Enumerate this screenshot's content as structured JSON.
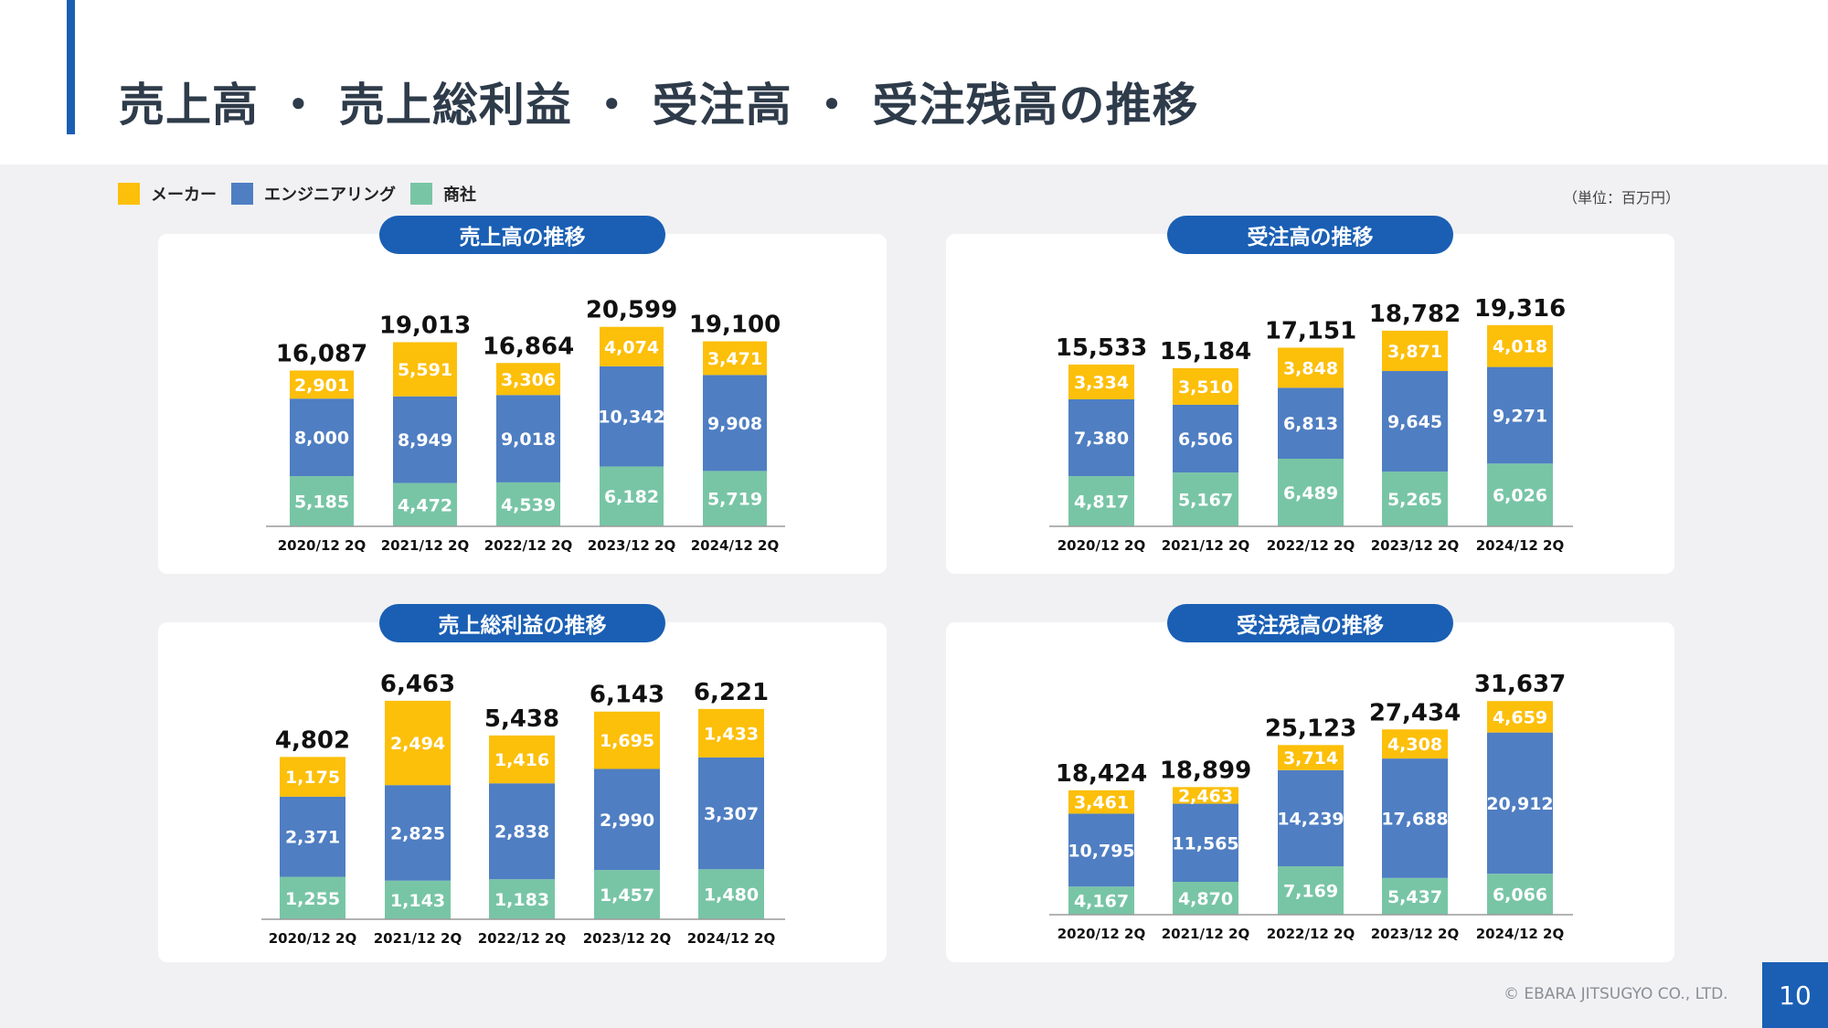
{
  "page": {
    "title": "売上高 ・ 売上総利益 ・ 受注高 ・ 受注残高の推移",
    "unit": "（単位：百万円）",
    "copyright": "© EBARA JITSUGYO CO., LTD.",
    "page_number": "10"
  },
  "colors": {
    "maker": "#fcbf0a",
    "engineering": "#4f7ec2",
    "trading": "#78c5a6",
    "accent": "#1a5fb4"
  },
  "legend": [
    {
      "label": "メーカー",
      "color": "#fcbf0a"
    },
    {
      "label": "エンジニアリング",
      "color": "#4f7ec2"
    },
    {
      "label": "商社",
      "color": "#78c5a6"
    }
  ],
  "chart_data": [
    {
      "type": "bar",
      "stacked": true,
      "title": "売上高の推移",
      "categories": [
        "2020/12 2Q",
        "2021/12 2Q",
        "2022/12 2Q",
        "2023/12 2Q",
        "2024/12 2Q"
      ],
      "totals": [
        16087,
        19013,
        16864,
        20599,
        19100
      ],
      "totals_text": [
        "16,087",
        "19,013",
        "16,864",
        "20,599",
        "19,100"
      ],
      "series": [
        {
          "name": "商社",
          "values": [
            5185,
            4472,
            4539,
            6182,
            5719
          ],
          "text": [
            "5,185",
            "4,472",
            "4,539",
            "6,182",
            "5,719"
          ]
        },
        {
          "name": "エンジニアリング",
          "values": [
            8000,
            8949,
            9018,
            10342,
            9908
          ],
          "text": [
            "8,000",
            "8,949",
            "9,018",
            "10,342",
            "9,908"
          ]
        },
        {
          "name": "メーカー",
          "values": [
            2901,
            5591,
            3306,
            4074,
            3471
          ],
          "text": [
            "2,901",
            "5,591",
            "3,306",
            "4,074",
            "3,471"
          ]
        }
      ]
    },
    {
      "type": "bar",
      "stacked": true,
      "title": "受注高の推移",
      "categories": [
        "2020/12 2Q",
        "2021/12 2Q",
        "2022/12 2Q",
        "2023/12 2Q",
        "2024/12 2Q"
      ],
      "totals": [
        15533,
        15184,
        17151,
        18782,
        19316
      ],
      "totals_text": [
        "15,533",
        "15,184",
        "17,151",
        "18,782",
        "19,316"
      ],
      "series": [
        {
          "name": "商社",
          "values": [
            4817,
            5167,
            6489,
            5265,
            6026
          ],
          "text": [
            "4,817",
            "5,167",
            "6,489",
            "5,265",
            "6,026"
          ]
        },
        {
          "name": "エンジニアリング",
          "values": [
            7380,
            6506,
            6813,
            9645,
            9271
          ],
          "text": [
            "7,380",
            "6,506",
            "6,813",
            "9,645",
            "9,271"
          ]
        },
        {
          "name": "メーカー",
          "values": [
            3334,
            3510,
            3848,
            3871,
            4018
          ],
          "text": [
            "3,334",
            "3,510",
            "3,848",
            "3,871",
            "4,018"
          ]
        }
      ]
    },
    {
      "type": "bar",
      "stacked": true,
      "title": "売上総利益の推移",
      "categories": [
        "2020/12 2Q",
        "2021/12 2Q",
        "2022/12 2Q",
        "2023/12 2Q",
        "2024/12 2Q"
      ],
      "totals": [
        4802,
        6463,
        5438,
        6143,
        6221
      ],
      "totals_text": [
        "4,802",
        "6,463",
        "5,438",
        "6,143",
        "6,221"
      ],
      "series": [
        {
          "name": "商社",
          "values": [
            1255,
            1143,
            1183,
            1457,
            1480
          ],
          "text": [
            "1,255",
            "1,143",
            "1,183",
            "1,457",
            "1,480"
          ]
        },
        {
          "name": "エンジニアリング",
          "values": [
            2371,
            2825,
            2838,
            2990,
            3307
          ],
          "text": [
            "2,371",
            "2,825",
            "2,838",
            "2,990",
            "3,307"
          ]
        },
        {
          "name": "メーカー",
          "values": [
            1175,
            2494,
            1416,
            1695,
            1433
          ],
          "text": [
            "1,175",
            "2,494",
            "1,416",
            "1,695",
            "1,433"
          ]
        }
      ]
    },
    {
      "type": "bar",
      "stacked": true,
      "title": "受注残高の推移",
      "categories": [
        "2020/12 2Q",
        "2021/12 2Q",
        "2022/12 2Q",
        "2023/12 2Q",
        "2024/12 2Q"
      ],
      "totals": [
        18424,
        18899,
        25123,
        27434,
        31637
      ],
      "totals_text": [
        "18,424",
        "18,899",
        "25,123",
        "27,434",
        "31,637"
      ],
      "series": [
        {
          "name": "商社",
          "values": [
            4167,
            4870,
            7169,
            5437,
            6066
          ],
          "text": [
            "4,167",
            "4,870",
            "7,169",
            "5,437",
            "6,066"
          ]
        },
        {
          "name": "エンジニアリング",
          "values": [
            10795,
            11565,
            14239,
            17688,
            20912
          ],
          "text": [
            "10,795",
            "11,565",
            "14,239",
            "17,688",
            "20,912"
          ]
        },
        {
          "name": "メーカー",
          "values": [
            3461,
            2463,
            3714,
            4308,
            4659
          ],
          "text": [
            "3,461",
            "2,463",
            "3,714",
            "4,308",
            "4,659"
          ]
        }
      ]
    }
  ]
}
